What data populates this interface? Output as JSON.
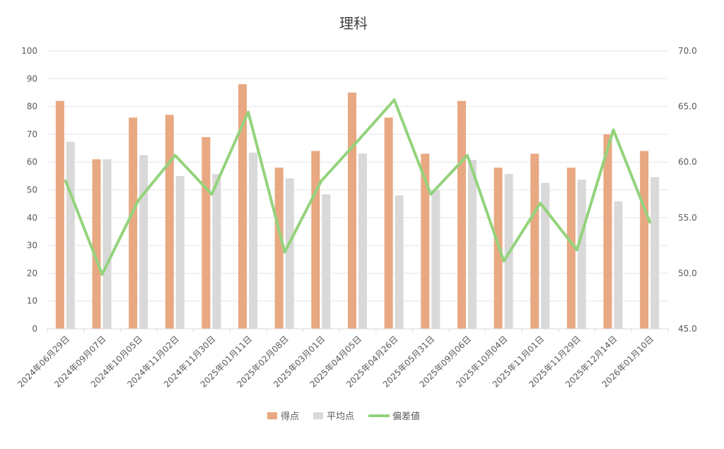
{
  "chart_data": {
    "type": "bar",
    "title": "理科",
    "categories": [
      "2024年06月29日",
      "2024年09月07日",
      "2024年10月05日",
      "2024年11月02日",
      "2024年11月30日",
      "2025年01月11日",
      "2025年02月08日",
      "2025年03月01日",
      "2025年04月05日",
      "2025年04月26日",
      "2025年05月31日",
      "2025年09月06日",
      "2025年10月04日",
      "2025年11月01日",
      "2025年11月29日",
      "2025年12月14日",
      "2026年01月10日"
    ],
    "series": [
      {
        "name": "得点",
        "kind": "bar",
        "axis": "left",
        "color": "#E8A882",
        "values": [
          82,
          61,
          76,
          77,
          69,
          88,
          58,
          64,
          85,
          76,
          63,
          82,
          58,
          63,
          58,
          70,
          64
        ]
      },
      {
        "name": "平均点",
        "kind": "bar",
        "axis": "left",
        "color": "#D9D9D9",
        "values": [
          67.3,
          61,
          62.5,
          55,
          55.7,
          63.4,
          54.1,
          48.4,
          63.1,
          48,
          49.9,
          60.8,
          55.7,
          52.5,
          53.7,
          45.9,
          54.6
        ]
      },
      {
        "name": "偏差値",
        "kind": "line",
        "axis": "right",
        "color": "#94D37C",
        "values": [
          58.3,
          49.9,
          56.6,
          60.6,
          57.1,
          64.5,
          51.9,
          58.3,
          61.9,
          65.6,
          57.1,
          60.6,
          51.1,
          56.3,
          52.1,
          62.9,
          54.6
        ]
      }
    ],
    "ylim": [
      0,
      100
    ],
    "y_ticks": [
      "0",
      "10",
      "20",
      "30",
      "40",
      "50",
      "60",
      "70",
      "80",
      "90",
      "100"
    ],
    "y2lim": [
      45,
      70
    ],
    "y2_ticks": [
      "45.0",
      "50.0",
      "55.0",
      "60.0",
      "65.0",
      "70.0"
    ],
    "grid": true,
    "legend_position": "bottom"
  }
}
